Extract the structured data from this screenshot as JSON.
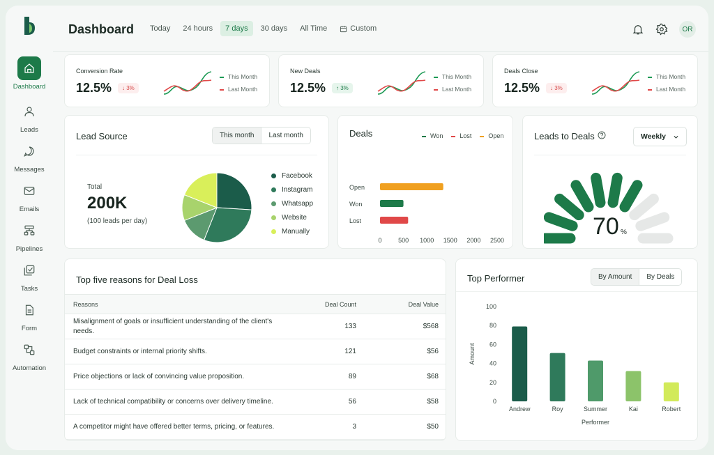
{
  "brand": {
    "accent": "#1d7a49",
    "dark": "#1b5c4a",
    "light": "#d9ef5a"
  },
  "sidebar": {
    "items": [
      {
        "label": "Dashboard",
        "icon": "home-icon"
      },
      {
        "label": "Leads",
        "icon": "user-icon"
      },
      {
        "label": "Messages",
        "icon": "chat-icon"
      },
      {
        "label": "Emails",
        "icon": "mail-icon"
      },
      {
        "label": "Pipelines",
        "icon": "pipeline-icon"
      },
      {
        "label": "Tasks",
        "icon": "tasks-icon"
      },
      {
        "label": "Form",
        "icon": "form-icon"
      },
      {
        "label": "Automation",
        "icon": "automation-icon"
      }
    ]
  },
  "header": {
    "title": "Dashboard",
    "filters": [
      "Today",
      "24 hours",
      "7 days",
      "30 days",
      "All Time",
      "Custom"
    ],
    "active_filter": "7 days",
    "avatar": "OR"
  },
  "kpis": [
    {
      "title": "Conversion Rate",
      "value": "12.5%",
      "delta": "↓ 3%",
      "legend_this": "This Month",
      "legend_last": "Last Month"
    },
    {
      "title": "New Deals",
      "value": "12.5%",
      "delta": "↑ 3%",
      "legend_this": "This Month",
      "legend_last": "Last Month"
    },
    {
      "title": "Deals Close",
      "value": "12.5%",
      "delta": "↓ 3%",
      "legend_this": "This Month",
      "legend_last": "Last Month"
    }
  ],
  "lead_source": {
    "title": "Lead Source",
    "tabs": [
      "This month",
      "Last month"
    ],
    "total_label": "Total",
    "total_value": "200K",
    "total_note": "(100 leads per day)",
    "slices": [
      {
        "name": "Facebook",
        "color": "#1b5c4a",
        "share": 26
      },
      {
        "name": "Instagram",
        "color": "#2f7a5b",
        "share": 30
      },
      {
        "name": "Whatsapp",
        "color": "#5c9a6f",
        "share": 13
      },
      {
        "name": "Website",
        "color": "#a8d36c",
        "share": 12
      },
      {
        "name": "Manually",
        "color": "#d9ef5a",
        "share": 19
      }
    ]
  },
  "deals": {
    "title": "Deals",
    "legend": [
      {
        "name": "Won",
        "color": "#1d7a49"
      },
      {
        "name": "Lost",
        "color": "#e04848"
      },
      {
        "name": "Open",
        "color": "#f0a020"
      }
    ]
  },
  "leads_to_deals": {
    "title": "Leads to Deals",
    "dropdown": "Weekly",
    "value": "70",
    "unit": "%",
    "segments_total": 10,
    "segments_filled": 7
  },
  "deal_loss": {
    "title": "Top five reasons for Deal Loss",
    "columns": [
      "Reasons",
      "Deal Count",
      "Deal Value"
    ],
    "rows": [
      {
        "reason": "Misalignment of goals or insufficient understanding of the client's needs.",
        "count": "133",
        "value": "$568"
      },
      {
        "reason": "Budget constraints or internal priority shifts.",
        "count": "121",
        "value": "$56"
      },
      {
        "reason": "Price objections or lack of convincing value proposition.",
        "count": "89",
        "value": "$68"
      },
      {
        "reason": "Lack of technical compatibility or concerns over delivery timeline.",
        "count": "56",
        "value": "$58"
      },
      {
        "reason": "A competitor might have offered better terms, pricing, or features.",
        "count": "3",
        "value": "$50"
      }
    ]
  },
  "top_performer": {
    "title": "Top Performer",
    "tabs": [
      "By Amount",
      "By Deals"
    ]
  },
  "chart_data": [
    {
      "type": "bar",
      "orientation": "horizontal",
      "categories": [
        "Open",
        "Won",
        "Lost"
      ],
      "values": [
        1350,
        500,
        600
      ],
      "colors": [
        "#f0a020",
        "#1d7a49",
        "#e04848"
      ],
      "xlim": [
        0,
        2500
      ],
      "xticks": [
        "0",
        "500",
        "1000",
        "1500",
        "2000",
        "2500"
      ]
    },
    {
      "type": "bar",
      "categories": [
        "Andrew",
        "Roy",
        "Summer",
        "Kai",
        "Robert"
      ],
      "values": [
        79,
        51,
        43,
        32,
        20
      ],
      "colors": [
        "#1b5c4a",
        "#2f7a5b",
        "#4f9a6a",
        "#8cc36a",
        "#d2ea5a"
      ],
      "xlabel": "Performer",
      "ylabel": "Amount",
      "ylim": [
        0,
        100
      ],
      "yticks": [
        "0",
        "20",
        "40",
        "60",
        "80",
        "100"
      ]
    },
    {
      "type": "line",
      "x": [
        1,
        2,
        3,
        4,
        5,
        6,
        7
      ],
      "series": [
        {
          "values": [
            2,
            5,
            8,
            4,
            3,
            7,
            10
          ],
          "color": "#1d9a55"
        },
        {
          "values": [
            3,
            6,
            7,
            3,
            5,
            8,
            6
          ],
          "color": "#e04848"
        }
      ]
    }
  ]
}
